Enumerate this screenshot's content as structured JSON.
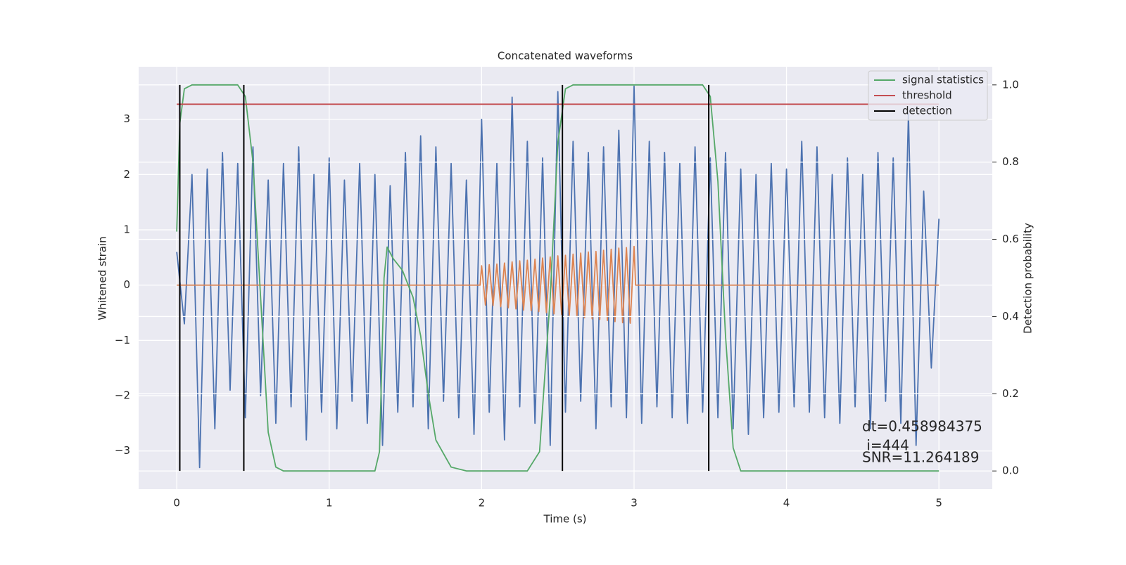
{
  "chart_data": {
    "type": "line",
    "title": "Concatenated waveforms",
    "xlabel": "Time (s)",
    "ylabel": "Whitened strain",
    "y2label": "Detection probability",
    "xlim": [
      -0.25,
      5.35
    ],
    "ylim": [
      -3.69,
      3.95
    ],
    "y2lim": [
      -0.047,
      1.047
    ],
    "xticks": [
      0,
      1,
      2,
      3,
      4,
      5
    ],
    "yticks": [
      {
        "value": -3,
        "label": "−3"
      },
      {
        "value": -2,
        "label": "−2"
      },
      {
        "value": -1,
        "label": "−1"
      },
      0,
      1,
      2,
      3
    ],
    "y2ticks": [
      {
        "value": 0,
        "label": "0.0"
      },
      {
        "value": 0.2,
        "label": "0.2"
      },
      {
        "value": 0.4,
        "label": "0.4"
      },
      {
        "value": 0.6,
        "label": "0.6"
      },
      {
        "value": 0.8,
        "label": "0.8"
      },
      {
        "value": 1,
        "label": "1.0"
      }
    ],
    "grid": true,
    "legend": "upper right",
    "series": [
      {
        "color": "#4c72b0",
        "x": [
          0,
          0.05,
          0.1,
          0.15,
          0.2,
          0.25,
          0.3,
          0.35,
          0.4,
          0.45,
          0.5,
          0.55,
          0.6,
          0.65,
          0.7,
          0.75,
          0.8,
          0.85,
          0.9,
          0.95,
          1,
          1.05,
          1.1,
          1.15,
          1.2,
          1.25,
          1.3,
          1.35,
          1.4,
          1.45,
          1.5,
          1.55,
          1.6,
          1.65,
          1.7,
          1.75,
          1.8,
          1.85,
          1.9,
          1.95,
          2,
          2.05,
          2.1,
          2.15,
          2.2,
          2.25,
          2.3,
          2.35,
          2.4,
          2.45,
          2.5,
          2.55,
          2.6,
          2.65,
          2.7,
          2.75,
          2.8,
          2.85,
          2.9,
          2.95,
          3,
          3.05,
          3.1,
          3.15,
          3.2,
          3.25,
          3.3,
          3.35,
          3.4,
          3.45,
          3.5,
          3.55,
          3.6,
          3.65,
          3.7,
          3.75,
          3.8,
          3.85,
          3.9,
          3.95,
          4,
          4.05,
          4.1,
          4.15,
          4.2,
          4.25,
          4.3,
          4.35,
          4.4,
          4.45,
          4.5,
          4.55,
          4.6,
          4.65,
          4.7,
          4.75,
          4.8,
          4.85,
          4.9,
          4.95,
          5
        ],
        "values": [
          0.6,
          -0.7,
          2.0,
          -3.3,
          2.1,
          -2.6,
          2.4,
          -1.9,
          2.2,
          -2.4,
          2.5,
          -2.0,
          1.9,
          -2.5,
          2.2,
          -2.2,
          2.5,
          -2.8,
          2.0,
          -2.3,
          2.3,
          -2.6,
          1.9,
          -2.1,
          2.2,
          -2.5,
          2.0,
          -2.9,
          1.8,
          -2.3,
          2.4,
          -2.2,
          2.7,
          -2.6,
          2.5,
          -2.1,
          2.2,
          -2.4,
          1.9,
          -2.7,
          3.0,
          -2.3,
          2.2,
          -2.8,
          3.4,
          -2.2,
          2.6,
          -2.5,
          2.3,
          -2.9,
          3.5,
          -2.3,
          2.6,
          -2.1,
          2.4,
          -2.6,
          2.5,
          -2.2,
          2.8,
          -2.4,
          3.6,
          -2.5,
          2.6,
          -2.2,
          2.4,
          -2.4,
          2.2,
          -2.5,
          2.5,
          -2.3,
          2.3,
          -2.4,
          2.4,
          -2.6,
          2.1,
          -2.7,
          2.0,
          -2.4,
          2.2,
          -2.3,
          2.1,
          -2.2,
          2.6,
          -2.3,
          2.5,
          -2.4,
          2.0,
          -2.5,
          2.3,
          -2.2,
          2.0,
          -2.6,
          2.4,
          -2.1,
          2.3,
          -2.5,
          3.1,
          -2.9,
          1.7,
          -1.5,
          1.2
        ]
      },
      {
        "color": "#dd8452",
        "x": [
          0,
          1.99,
          2,
          2.025,
          2.05,
          2.075,
          2.1,
          2.125,
          2.15,
          2.175,
          2.2,
          2.225,
          2.25,
          2.275,
          2.3,
          2.325,
          2.35,
          2.375,
          2.4,
          2.425,
          2.45,
          2.475,
          2.5,
          2.525,
          2.55,
          2.575,
          2.6,
          2.625,
          2.65,
          2.675,
          2.7,
          2.725,
          2.75,
          2.775,
          2.8,
          2.825,
          2.85,
          2.875,
          2.9,
          2.925,
          2.95,
          2.975,
          3,
          3.01,
          5
        ],
        "values": [
          0,
          0,
          0.35,
          -0.36,
          0.37,
          -0.37,
          0.38,
          -0.39,
          0.4,
          -0.41,
          0.42,
          -0.43,
          0.44,
          -0.45,
          0.45,
          -0.46,
          0.47,
          -0.48,
          0.49,
          -0.5,
          0.51,
          -0.52,
          0.53,
          -0.53,
          0.54,
          -0.55,
          0.56,
          -0.57,
          0.58,
          -0.59,
          0.6,
          -0.61,
          0.61,
          -0.62,
          0.63,
          -0.64,
          0.65,
          -0.66,
          0.67,
          -0.68,
          0.68,
          -0.69,
          0.7,
          0,
          0
        ]
      },
      {
        "name": "signal statistics",
        "color": "#55a868",
        "axis": "y2",
        "x": [
          0,
          0.02,
          0.05,
          0.1,
          0.4,
          0.45,
          0.5,
          0.55,
          0.6,
          0.65,
          0.7,
          1.3,
          1.33,
          1.36,
          1.38,
          1.42,
          1.48,
          1.55,
          1.6,
          1.65,
          1.7,
          1.8,
          1.9,
          2.3,
          2.38,
          2.45,
          2.5,
          2.55,
          2.6,
          3.45,
          3.5,
          3.55,
          3.6,
          3.65,
          3.7,
          5
        ],
        "values": [
          0.62,
          0.9,
          0.99,
          1.0,
          1.0,
          0.97,
          0.8,
          0.45,
          0.1,
          0.01,
          0,
          0,
          0.05,
          0.5,
          0.58,
          0.55,
          0.52,
          0.45,
          0.35,
          0.2,
          0.08,
          0.01,
          0,
          0,
          0.05,
          0.45,
          0.85,
          0.99,
          1.0,
          1.0,
          0.97,
          0.75,
          0.35,
          0.06,
          0,
          0
        ]
      },
      {
        "name": "threshold",
        "color": "#c44e52",
        "axis": "y2",
        "x": [
          0,
          5
        ],
        "values": [
          0.95,
          0.95
        ]
      },
      {
        "name": "detection",
        "color": "#000000",
        "axis": "y2",
        "kind": "vline",
        "x": [
          0.02,
          0.44,
          2.53,
          3.49
        ],
        "ymin": 0,
        "ymax": 1
      }
    ],
    "annotations": [
      "dt=0.458984375",
      " i=444",
      "SNR=11.264189"
    ]
  }
}
